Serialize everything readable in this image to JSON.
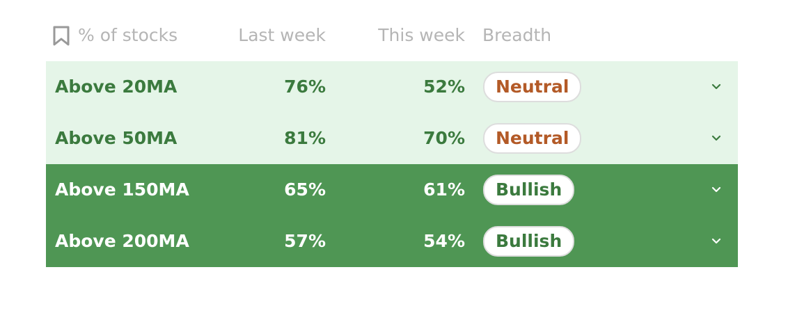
{
  "table": {
    "header": [
      "% of stocks",
      "Last week",
      "This week",
      "Breadth"
    ],
    "rows": [
      [
        "Above 20MA",
        "76%",
        "52%",
        "Neutral"
      ],
      [
        "Above 50MA",
        "81%",
        "70%",
        "Neutral"
      ],
      [
        "Above 150MA",
        "65%",
        "61%",
        "Bullish"
      ],
      [
        "Above 200MA",
        "57%",
        "54%",
        "Bullish"
      ]
    ]
  }
}
